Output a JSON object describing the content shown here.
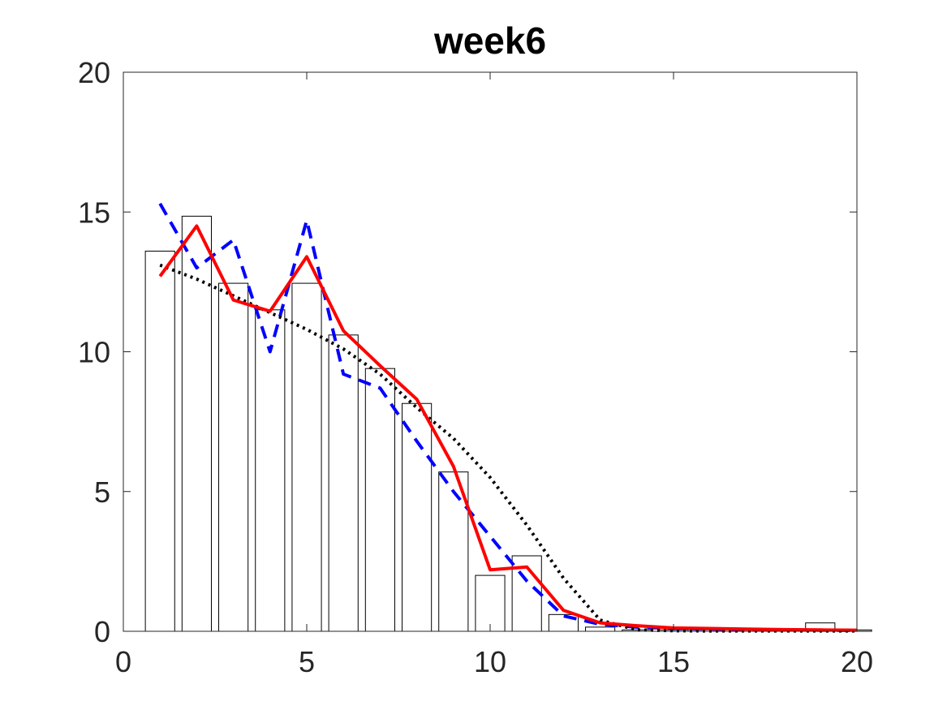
{
  "chart_data": {
    "type": "bar",
    "title": "week6",
    "xlabel": "",
    "ylabel": "",
    "xlim": [
      0,
      20
    ],
    "ylim": [
      0,
      20
    ],
    "xticks": [
      0,
      5,
      10,
      15,
      20
    ],
    "yticks": [
      0,
      5,
      10,
      15,
      20
    ],
    "grid": false,
    "bars": {
      "x": [
        1,
        2,
        3,
        4,
        5,
        6,
        7,
        8,
        9,
        10,
        11,
        12,
        13,
        14,
        15,
        16,
        17,
        18,
        19,
        20
      ],
      "values": [
        13.6,
        14.85,
        12.45,
        11.5,
        12.45,
        10.6,
        9.4,
        8.15,
        5.7,
        2.0,
        2.7,
        0.6,
        0.15,
        0.05,
        0.05,
        0.05,
        0.05,
        0.05,
        0.3,
        0.05
      ],
      "fill": "#ffffff",
      "edge_color": "#000000"
    },
    "series": [
      {
        "style": "dashed",
        "color": "#0000ff",
        "x": [
          1,
          2,
          3,
          4,
          5,
          6,
          7,
          8,
          9,
          10,
          11,
          12,
          13,
          14,
          15,
          16,
          17,
          18,
          19,
          20
        ],
        "values": [
          15.3,
          13.0,
          14.0,
          10.0,
          14.7,
          9.2,
          8.7,
          6.8,
          5.0,
          3.4,
          1.8,
          0.55,
          0.25,
          0.15,
          0.1,
          0.08,
          0.06,
          0.05,
          0.04,
          0.03
        ]
      },
      {
        "style": "dotted",
        "color": "#000000",
        "x": [
          1,
          2,
          3,
          4,
          5,
          6,
          7,
          8,
          9,
          10,
          11,
          12,
          13,
          14,
          15,
          16,
          17,
          18,
          19,
          20
        ],
        "values": [
          13.1,
          12.6,
          12.0,
          11.4,
          10.8,
          10.1,
          9.2,
          8.0,
          6.9,
          5.5,
          3.8,
          1.9,
          0.4,
          0.05,
          0.02,
          0.01,
          0.01,
          0.01,
          0.01,
          0.01
        ]
      },
      {
        "style": "solid",
        "color": "#ff0000",
        "x": [
          1,
          2,
          3,
          4,
          5,
          6,
          7,
          8,
          9,
          10,
          11,
          12,
          13,
          14,
          15,
          16,
          17,
          18,
          19,
          20
        ],
        "values": [
          12.7,
          14.5,
          11.85,
          11.45,
          13.4,
          10.75,
          9.5,
          8.3,
          5.9,
          2.2,
          2.3,
          0.75,
          0.3,
          0.2,
          0.12,
          0.1,
          0.08,
          0.06,
          0.05,
          0.04
        ]
      }
    ]
  }
}
